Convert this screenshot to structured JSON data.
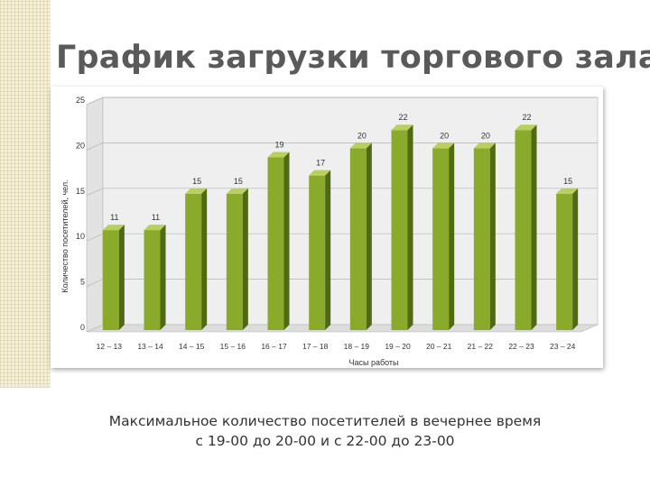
{
  "slide": {
    "title": "График загрузки торгового зала",
    "caption_line1": "Максимальное количество посетителей в вечернее время",
    "caption_line2": "с 19-00 до 20-00 и с 22-00 до 23-00"
  },
  "colors": {
    "bar_front": "#8aaa2c",
    "bar_side": "#4f6914",
    "bar_top": "#b9d15c",
    "back_wall": "#efefef",
    "floor": "#dcdcdc",
    "grid": "#b4b4b4",
    "stripe": "#f4efd6"
  },
  "chart_data": {
    "type": "bar",
    "title": "",
    "xlabel": "Часы работы",
    "ylabel": "Количество посетителей, чел.",
    "ylim": [
      0,
      25
    ],
    "yticks": [
      0,
      5,
      10,
      15,
      20,
      25
    ],
    "grid": true,
    "legend": "none",
    "style": "3d-column",
    "categories": [
      "12 – 13",
      "13 – 14",
      "14 – 15",
      "15 – 16",
      "16 – 17",
      "17 – 18",
      "18 – 19",
      "19 – 20",
      "20 – 21",
      "21 – 22",
      "22 – 23",
      "23 – 24"
    ],
    "values": [
      11,
      11,
      15,
      15,
      19,
      17,
      20,
      22,
      20,
      20,
      22,
      15
    ]
  }
}
